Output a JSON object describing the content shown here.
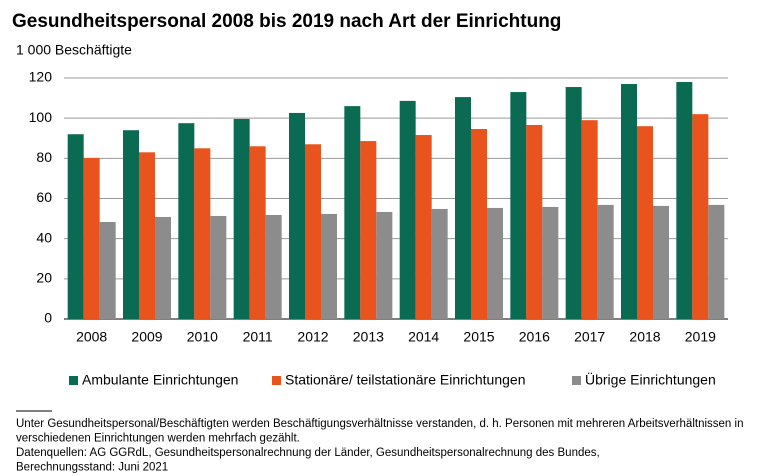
{
  "chart_data": {
    "type": "bar",
    "title": "Gesundheitspersonal 2008 bis 2019 nach Art der Einrichtung",
    "subtitle": "1 000 Beschäftigte",
    "categories": [
      "2008",
      "2009",
      "2010",
      "2011",
      "2012",
      "2013",
      "2014",
      "2015",
      "2016",
      "2017",
      "2018",
      "2019"
    ],
    "series": [
      {
        "name": "Ambulante Einrichtungen",
        "color": "#0b6b52",
        "values": [
          92,
          94,
          97.5,
          99.6,
          102.6,
          106,
          108.6,
          110.5,
          113,
          115.5,
          117,
          118
        ]
      },
      {
        "name": "Stationäre/ teilstationäre Einrichtungen",
        "color": "#e9531d",
        "values": [
          80.2,
          83,
          85,
          86,
          87,
          88.6,
          91.6,
          94.6,
          96.6,
          99,
          96,
          102
        ]
      },
      {
        "name": "Übrige Einrichtungen",
        "color": "#8c8c8c",
        "values": [
          48.3,
          50.8,
          51.3,
          51.8,
          52.3,
          53.3,
          54.8,
          55.3,
          55.8,
          56.8,
          56.3,
          56.8
        ]
      }
    ],
    "ylim": [
      0,
      120
    ],
    "yticks": [
      0,
      20,
      40,
      60,
      80,
      100,
      120
    ],
    "grid": true,
    "legend": "bottom",
    "notes": [
      "Unter Gesundheitspersonal/Beschäftigten werden Beschäftigungsverhältnisse verstanden, d. h. Personen mit mehreren Arbeitsverhältnissen in",
      "verschiedenen Einrichtungen werden mehrfach gezählt.",
      "Datenquellen: AG GGRdL, Gesundheitspersonalrechnung der Länder, Gesundheitspersonalrechnung des Bundes,",
      "Berechnungsstand: Juni 2021"
    ]
  }
}
